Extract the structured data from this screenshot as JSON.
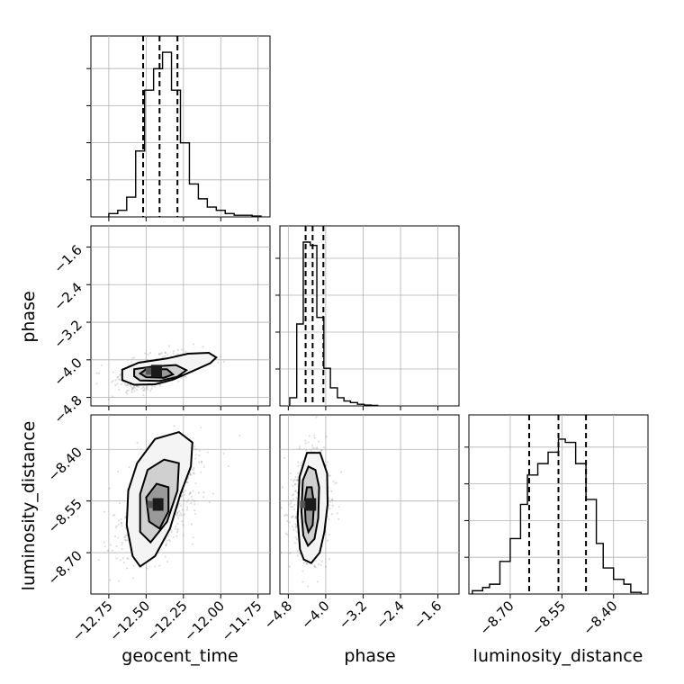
{
  "chart_data": {
    "type": "corner",
    "parameters": [
      "geocent_time",
      "phase",
      "luminosity_distance"
    ],
    "grid": true,
    "ranges": {
      "geocent_time": [
        -12.87,
        -11.67
      ],
      "phase": [
        -4.98,
        -1.15
      ],
      "luminosity_distance": [
        -8.82,
        -8.3
      ]
    },
    "ticks": {
      "geocent_time": [
        "-12.75",
        "-12.50",
        "-12.25",
        "-12.00",
        "-11.75"
      ],
      "phase": [
        "-4.8",
        "-4.0",
        "-3.2",
        "-2.4",
        "-1.6"
      ],
      "luminosity_distance": [
        "-8.70",
        "-8.55",
        "-8.40"
      ]
    },
    "quantiles": {
      "geocent_time": [
        -12.52,
        -12.41,
        -12.29
      ],
      "phase": [
        -4.43,
        -4.28,
        -4.05
      ],
      "luminosity_distance": [
        -8.645,
        -8.56,
        -8.48
      ]
    },
    "marginals": {
      "geocent_time": {
        "edges": [
          -12.75,
          -12.69,
          -12.63,
          -12.57,
          -12.51,
          -12.45,
          -12.39,
          -12.33,
          -12.27,
          -12.21,
          -12.15,
          -12.09,
          -12.03,
          -11.97,
          -11.91,
          -11.85,
          -11.79,
          -11.73
        ],
        "counts": [
          0.02,
          0.04,
          0.12,
          0.4,
          0.77,
          0.9,
          1.0,
          0.77,
          0.45,
          0.2,
          0.11,
          0.06,
          0.04,
          0.02,
          0.01,
          0.01,
          0.005
        ]
      },
      "phase": {
        "edges": [
          -4.77,
          -4.62,
          -4.48,
          -4.33,
          -4.19,
          -4.04,
          -3.9,
          -3.75,
          -3.61,
          -3.47,
          -3.32,
          -3.18,
          -3.03,
          -2.89
        ],
        "counts": [
          0.05,
          0.5,
          1.0,
          0.98,
          0.54,
          0.23,
          0.11,
          0.05,
          0.03,
          0.02,
          0.01,
          0.005,
          0.003
        ]
      },
      "luminosity_distance": {
        "edges": [
          -8.81,
          -8.78,
          -8.76,
          -8.73,
          -8.7,
          -8.67,
          -8.65,
          -8.62,
          -8.59,
          -8.56,
          -8.54,
          -8.51,
          -8.48,
          -8.45,
          -8.43,
          -8.4,
          -8.37,
          -8.35,
          -8.32
        ],
        "counts": [
          0.02,
          0.04,
          0.06,
          0.2,
          0.34,
          0.55,
          0.73,
          0.8,
          0.87,
          0.95,
          0.93,
          0.8,
          0.58,
          0.31,
          0.16,
          0.09,
          0.06,
          0.01
        ]
      }
    },
    "pairs": [
      {
        "x": "geocent_time",
        "y": "phase",
        "center": [
          -12.43,
          -4.24
        ],
        "sd": [
          0.1,
          0.17
        ],
        "rho": 0.55,
        "contours": [
          [
            [
              -12.66,
              -4.43
            ],
            [
              -12.66,
              -4.21
            ],
            [
              -12.55,
              -4.06
            ],
            [
              -12.36,
              -3.97
            ],
            [
              -12.22,
              -3.87
            ],
            [
              -12.08,
              -3.85
            ],
            [
              -12.03,
              -3.95
            ],
            [
              -12.07,
              -4.07
            ],
            [
              -12.19,
              -4.24
            ],
            [
              -12.32,
              -4.42
            ],
            [
              -12.44,
              -4.52
            ],
            [
              -12.58,
              -4.53
            ],
            [
              -12.66,
              -4.43
            ]
          ],
          [
            [
              -12.58,
              -4.35
            ],
            [
              -12.58,
              -4.2
            ],
            [
              -12.45,
              -4.14
            ],
            [
              -12.3,
              -4.11
            ],
            [
              -12.23,
              -4.22
            ],
            [
              -12.29,
              -4.36
            ],
            [
              -12.41,
              -4.45
            ],
            [
              -12.54,
              -4.44
            ],
            [
              -12.58,
              -4.35
            ]
          ],
          [
            [
              -12.54,
              -4.29
            ],
            [
              -12.5,
              -4.2
            ],
            [
              -12.36,
              -4.2
            ],
            [
              -12.32,
              -4.31
            ],
            [
              -12.38,
              -4.38
            ],
            [
              -12.5,
              -4.37
            ],
            [
              -12.54,
              -4.29
            ]
          ]
        ]
      },
      {
        "x": "geocent_time",
        "y": "luminosity_distance",
        "center": [
          -12.42,
          -8.56
        ],
        "sd": [
          0.12,
          0.075
        ],
        "rho": 0.55,
        "contours": [
          [
            [
              -12.59,
              -8.71
            ],
            [
              -12.63,
              -8.62
            ],
            [
              -12.62,
              -8.52
            ],
            [
              -12.56,
              -8.44
            ],
            [
              -12.44,
              -8.37
            ],
            [
              -12.28,
              -8.35
            ],
            [
              -12.19,
              -8.38
            ],
            [
              -12.2,
              -8.45
            ],
            [
              -12.27,
              -8.53
            ],
            [
              -12.34,
              -8.63
            ],
            [
              -12.44,
              -8.71
            ],
            [
              -12.54,
              -8.74
            ],
            [
              -12.59,
              -8.71
            ]
          ],
          [
            [
              -12.54,
              -8.64
            ],
            [
              -12.54,
              -8.53
            ],
            [
              -12.49,
              -8.46
            ],
            [
              -12.38,
              -8.43
            ],
            [
              -12.28,
              -8.44
            ],
            [
              -12.29,
              -8.52
            ],
            [
              -12.36,
              -8.61
            ],
            [
              -12.47,
              -8.67
            ],
            [
              -12.54,
              -8.64
            ]
          ],
          [
            [
              -12.48,
              -8.61
            ],
            [
              -12.5,
              -8.54
            ],
            [
              -12.43,
              -8.5
            ],
            [
              -12.35,
              -8.51
            ],
            [
              -12.35,
              -8.58
            ],
            [
              -12.41,
              -8.63
            ],
            [
              -12.48,
              -8.61
            ]
          ]
        ]
      },
      {
        "x": "phase",
        "y": "luminosity_distance",
        "center": [
          -4.32,
          -8.56
        ],
        "sd": [
          0.17,
          0.075
        ],
        "rho": 0.15,
        "contours": [
          [
            [
              -4.55,
              -8.69
            ],
            [
              -4.6,
              -8.6
            ],
            [
              -4.56,
              -8.48
            ],
            [
              -4.4,
              -8.41
            ],
            [
              -4.12,
              -8.41
            ],
            [
              -3.97,
              -8.47
            ],
            [
              -3.96,
              -8.56
            ],
            [
              -4.03,
              -8.64
            ],
            [
              -4.13,
              -8.7
            ],
            [
              -4.31,
              -8.73
            ],
            [
              -4.47,
              -8.72
            ],
            [
              -4.55,
              -8.69
            ]
          ],
          [
            [
              -4.48,
              -8.65
            ],
            [
              -4.52,
              -8.58
            ],
            [
              -4.49,
              -8.49
            ],
            [
              -4.37,
              -8.45
            ],
            [
              -4.22,
              -8.46
            ],
            [
              -4.14,
              -8.51
            ],
            [
              -4.16,
              -8.6
            ],
            [
              -4.24,
              -8.66
            ],
            [
              -4.38,
              -8.68
            ],
            [
              -4.48,
              -8.65
            ]
          ],
          [
            [
              -4.43,
              -8.61
            ],
            [
              -4.45,
              -8.55
            ],
            [
              -4.4,
              -8.51
            ],
            [
              -4.3,
              -8.51
            ],
            [
              -4.25,
              -8.56
            ],
            [
              -4.28,
              -8.62
            ],
            [
              -4.37,
              -8.64
            ],
            [
              -4.43,
              -8.61
            ]
          ]
        ]
      }
    ]
  }
}
